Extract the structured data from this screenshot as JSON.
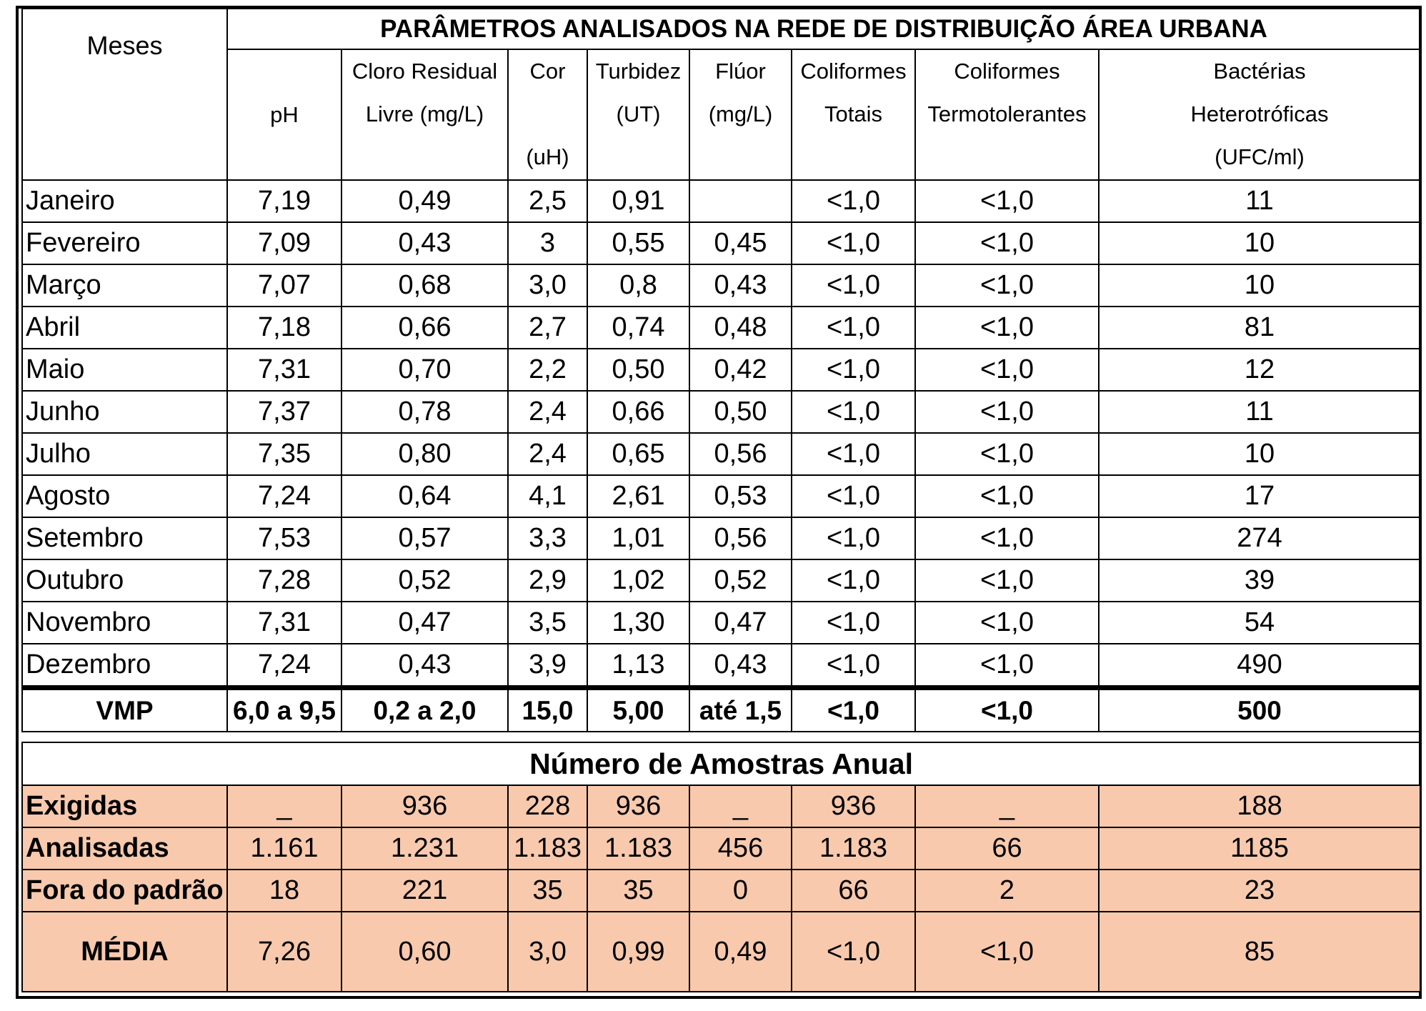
{
  "title": "PARÂMETROS ANALISADOS NA REDE DE DISTRIBUIÇÃO ÁREA URBANA",
  "headers": {
    "meses": "Meses",
    "ph": "pH",
    "cloro_l1": "Cloro Residual",
    "cloro_l2": "Livre (mg/L)",
    "cor_l1": "Cor",
    "cor_l2": "(uH)",
    "turbidez_l1": "Turbidez",
    "turbidez_l2": "(UT)",
    "fluor_l1": "Flúor",
    "fluor_l2": "(mg/L)",
    "colif_totais_l1": "Coliformes",
    "colif_totais_l2": "Totais",
    "colif_termo_l1": "Coliformes",
    "colif_termo_l2": "Termotolerantes",
    "bact_l1": "Bactérias",
    "bact_l2": "Heterotróficas",
    "bact_l3": "(UFC/ml)"
  },
  "months": [
    {
      "name": "Janeiro",
      "ph": "7,19",
      "cloro": "0,49",
      "cor": "2,5",
      "turbidez": "0,91",
      "fluor": "",
      "ct": "<1,0",
      "cterm": "<1,0",
      "bact": "11"
    },
    {
      "name": "Fevereiro",
      "ph": "7,09",
      "cloro": "0,43",
      "cor": "3",
      "turbidez": "0,55",
      "fluor": "0,45",
      "ct": "<1,0",
      "cterm": "<1,0",
      "bact": "10"
    },
    {
      "name": "Março",
      "ph": "7,07",
      "cloro": "0,68",
      "cor": "3,0",
      "turbidez": "0,8",
      "fluor": "0,43",
      "ct": "<1,0",
      "cterm": "<1,0",
      "bact": "10"
    },
    {
      "name": "Abril",
      "ph": "7,18",
      "cloro": "0,66",
      "cor": "2,7",
      "turbidez": "0,74",
      "fluor": "0,48",
      "ct": "<1,0",
      "cterm": "<1,0",
      "bact": "81"
    },
    {
      "name": "Maio",
      "ph": "7,31",
      "cloro": "0,70",
      "cor": "2,2",
      "turbidez": "0,50",
      "fluor": "0,42",
      "ct": "<1,0",
      "cterm": "<1,0",
      "bact": "12"
    },
    {
      "name": "Junho",
      "ph": "7,37",
      "cloro": "0,78",
      "cor": "2,4",
      "turbidez": "0,66",
      "fluor": "0,50",
      "ct": "<1,0",
      "cterm": "<1,0",
      "bact": "11"
    },
    {
      "name": "Julho",
      "ph": "7,35",
      "cloro": "0,80",
      "cor": "2,4",
      "turbidez": "0,65",
      "fluor": "0,56",
      "ct": "<1,0",
      "cterm": "<1,0",
      "bact": "10"
    },
    {
      "name": "Agosto",
      "ph": "7,24",
      "cloro": "0,64",
      "cor": "4,1",
      "turbidez": "2,61",
      "fluor": "0,53",
      "ct": "<1,0",
      "cterm": "<1,0",
      "bact": "17"
    },
    {
      "name": "Setembro",
      "ph": "7,53",
      "cloro": "0,57",
      "cor": "3,3",
      "turbidez": "1,01",
      "fluor": "0,56",
      "ct": "<1,0",
      "cterm": "<1,0",
      "bact": "274"
    },
    {
      "name": "Outubro",
      "ph": "7,28",
      "cloro": "0,52",
      "cor": "2,9",
      "turbidez": "1,02",
      "fluor": "0,52",
      "ct": "<1,0",
      "cterm": "<1,0",
      "bact": "39"
    },
    {
      "name": "Novembro",
      "ph": "7,31",
      "cloro": "0,47",
      "cor": "3,5",
      "turbidez": "1,30",
      "fluor": "0,47",
      "ct": "<1,0",
      "cterm": "<1,0",
      "bact": "54"
    },
    {
      "name": "Dezembro",
      "ph": "7,24",
      "cloro": "0,43",
      "cor": "3,9",
      "turbidez": "1,13",
      "fluor": "0,43",
      "ct": "<1,0",
      "cterm": "<1,0",
      "bact": "490"
    }
  ],
  "vmp": {
    "label": "VMP",
    "ph": "6,0 a 9,5",
    "cloro": "0,2 a 2,0",
    "cor": "15,0",
    "turbidez": "5,00",
    "fluor": "até 1,5",
    "ct": "<1,0",
    "cterm": "<1,0",
    "bact": "500"
  },
  "samples_title": "Número de Amostras Anual",
  "samples": [
    {
      "label": "Exigidas",
      "ph": "_",
      "cloro": "936",
      "cor": "228",
      "turbidez": "936",
      "fluor": "_",
      "ct": "936",
      "cterm": "_",
      "bact": "188"
    },
    {
      "label": "Analisadas",
      "ph": "1.161",
      "cloro": "1.231",
      "cor": "1.183",
      "turbidez": "1.183",
      "fluor": "456",
      "ct": "1.183",
      "cterm": "66",
      "bact": "1185"
    },
    {
      "label": "Fora do padrão",
      "ph": "18",
      "cloro": "221",
      "cor": "35",
      "turbidez": "35",
      "fluor": "0",
      "ct": "66",
      "cterm": "2",
      "bact": "23"
    }
  ],
  "media": {
    "label": "MÉDIA",
    "ph": "7,26",
    "cloro": "0,60",
    "cor": "3,0",
    "turbidez": "0,99",
    "fluor": "0,49",
    "ct": "<1,0",
    "cterm": "<1,0",
    "bact": "85"
  },
  "colors": {
    "highlight_row": "#f8c9ad",
    "border": "#000000"
  }
}
